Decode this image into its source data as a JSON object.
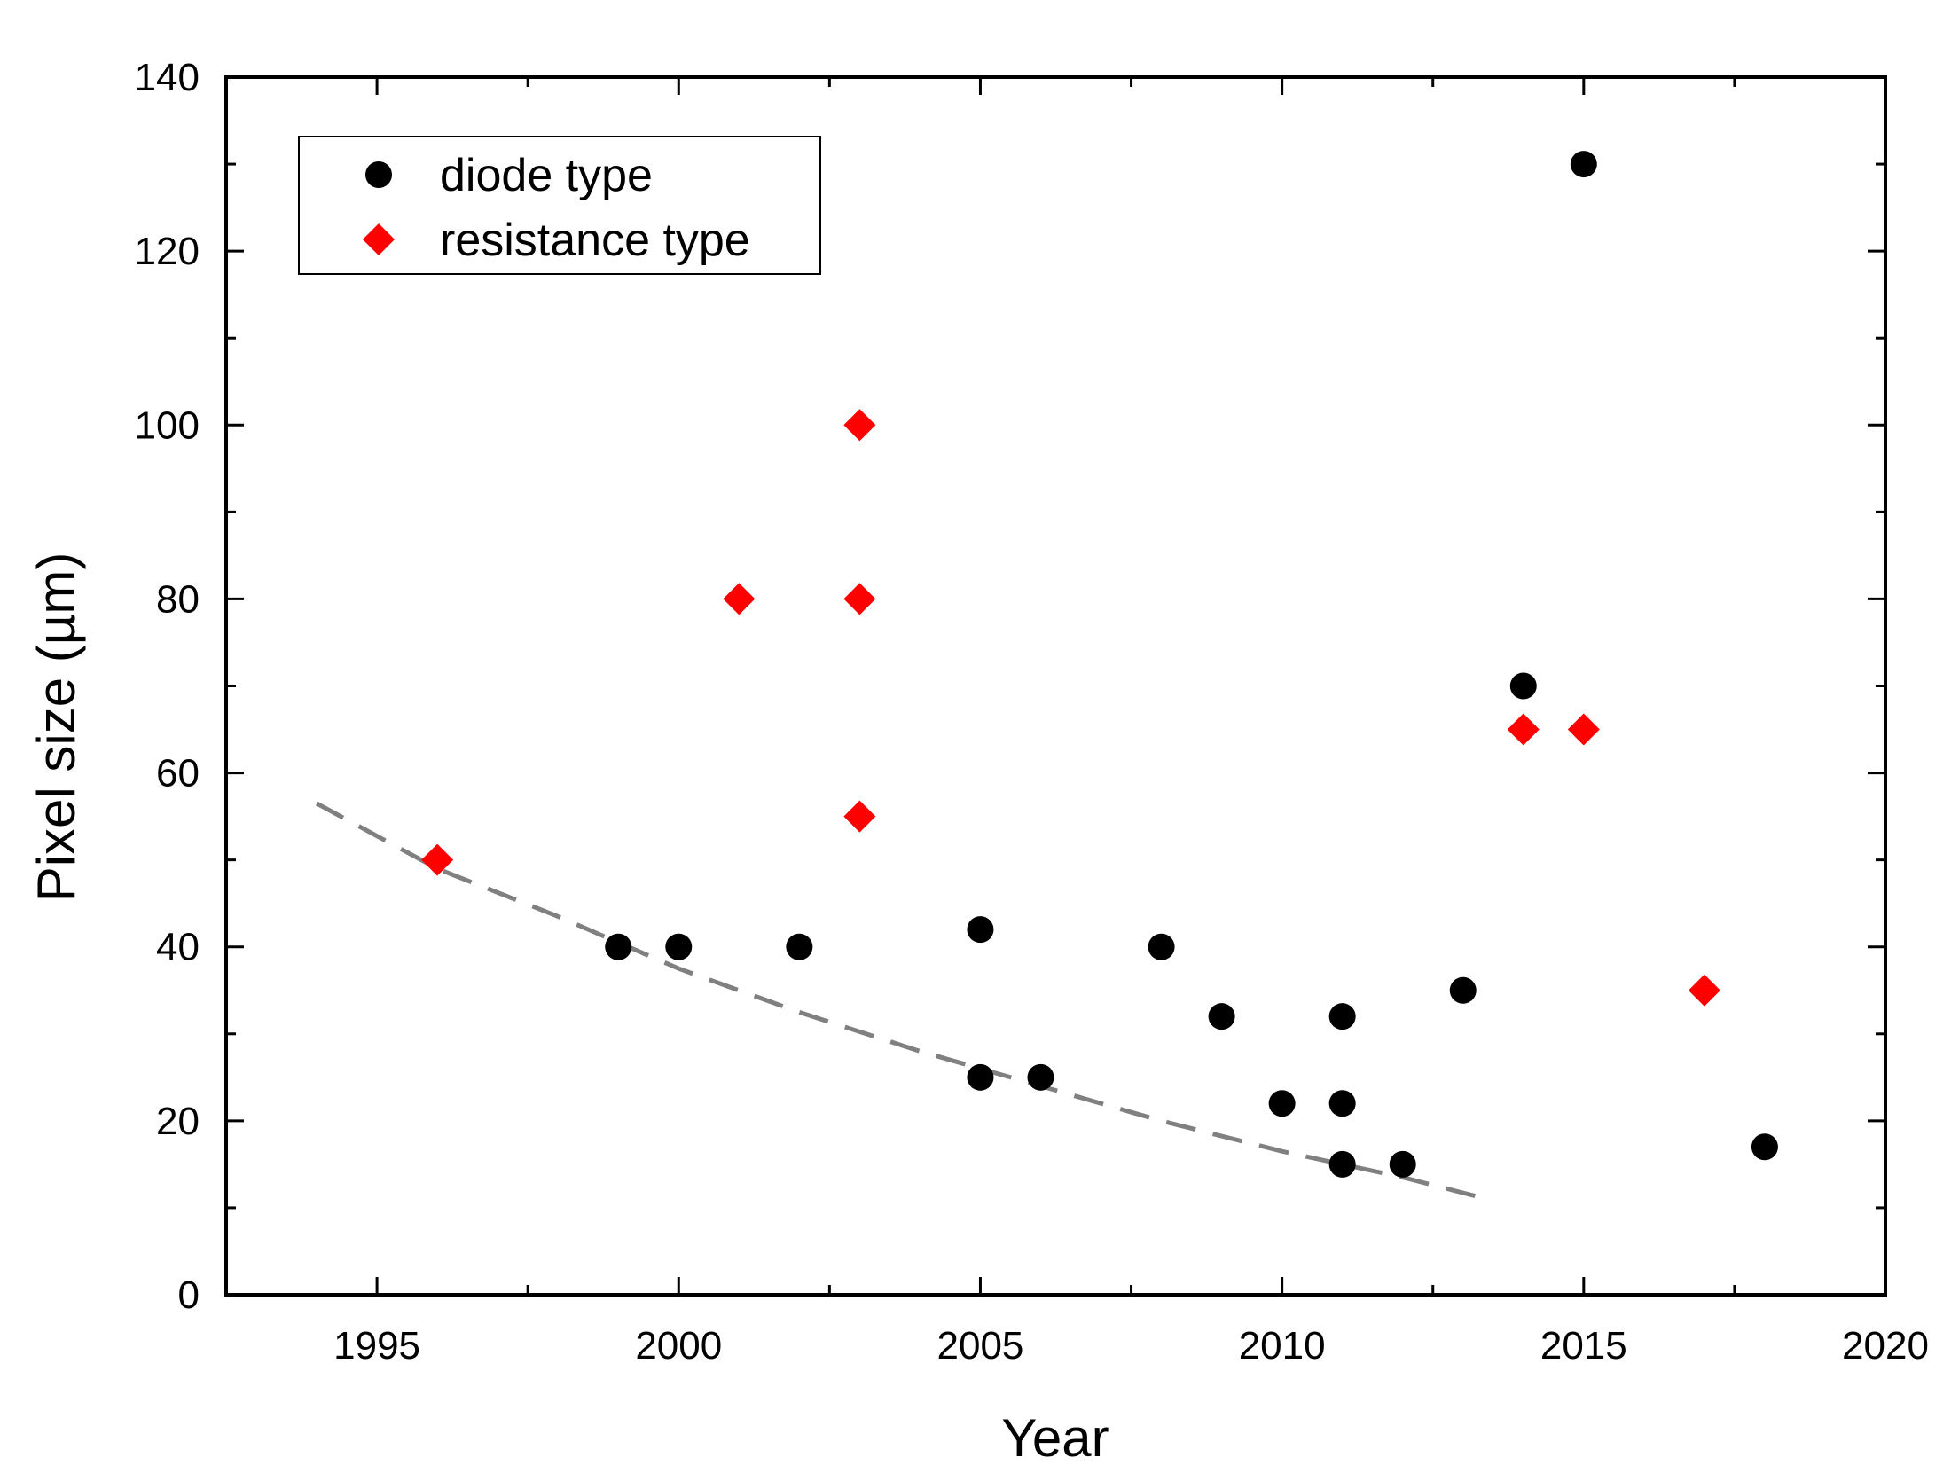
{
  "chart_data": {
    "type": "scatter",
    "title": "",
    "xlabel": "Year",
    "ylabel": "Pixel size (µm)",
    "xlim": [
      1992.5,
      2020
    ],
    "ylim": [
      0,
      140
    ],
    "xticks": [
      1995,
      2000,
      2005,
      2010,
      2015,
      2020
    ],
    "yticks": [
      0,
      20,
      40,
      60,
      80,
      100,
      120,
      140
    ],
    "legend_position": "top-left",
    "series": [
      {
        "name": "diode type",
        "marker": "circle",
        "color": "#000000",
        "points": [
          {
            "x": 1999,
            "y": 40
          },
          {
            "x": 2000,
            "y": 40
          },
          {
            "x": 2002,
            "y": 40
          },
          {
            "x": 2005,
            "y": 42
          },
          {
            "x": 2005,
            "y": 25
          },
          {
            "x": 2006,
            "y": 25
          },
          {
            "x": 2008,
            "y": 40
          },
          {
            "x": 2009,
            "y": 32
          },
          {
            "x": 2010,
            "y": 22
          },
          {
            "x": 2011,
            "y": 32
          },
          {
            "x": 2011,
            "y": 22
          },
          {
            "x": 2011,
            "y": 15
          },
          {
            "x": 2012,
            "y": 15
          },
          {
            "x": 2013,
            "y": 35
          },
          {
            "x": 2014,
            "y": 70
          },
          {
            "x": 2015,
            "y": 130
          },
          {
            "x": 2018,
            "y": 17
          }
        ]
      },
      {
        "name": "resistance type",
        "marker": "diamond",
        "color": "#ff0000",
        "points": [
          {
            "x": 1996,
            "y": 50
          },
          {
            "x": 2001,
            "y": 80
          },
          {
            "x": 2003,
            "y": 100
          },
          {
            "x": 2003,
            "y": 80
          },
          {
            "x": 2003,
            "y": 55
          },
          {
            "x": 2014,
            "y": 65
          },
          {
            "x": 2015,
            "y": 65
          },
          {
            "x": 2017,
            "y": 35
          }
        ]
      }
    ],
    "trend_line": {
      "style": "dashed",
      "color": "#808080",
      "points": [
        {
          "x": 1994,
          "y": 56.5
        },
        {
          "x": 1996,
          "y": 49
        },
        {
          "x": 1998,
          "y": 43.5
        },
        {
          "x": 2000,
          "y": 37.5
        },
        {
          "x": 2002,
          "y": 32.5
        },
        {
          "x": 2004,
          "y": 28
        },
        {
          "x": 2006,
          "y": 24
        },
        {
          "x": 2008,
          "y": 20
        },
        {
          "x": 2010,
          "y": 16.5
        },
        {
          "x": 2012,
          "y": 13.5
        },
        {
          "x": 2013.4,
          "y": 11
        }
      ]
    }
  }
}
